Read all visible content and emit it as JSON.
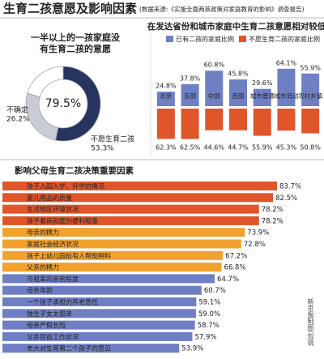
{
  "header": {
    "title": "生育二孩意愿及影响因素",
    "source": "(数据来源:《实施全面两孩政策对家庭教育的影响》调查报告)"
  },
  "chart_data": [
    {
      "type": "donut",
      "title": "一半以上的一孩家庭没有生育二孩的意愿",
      "categories": [
        "不愿生育二孩",
        "不确定",
        null
      ],
      "values": [
        53.3,
        26.2,
        20.5
      ],
      "value_labels": [
        "53.3%",
        "26.2%",
        null
      ],
      "colors": [
        "#26345f",
        "#c9ccd4",
        "#ffffff"
      ],
      "center_label": "79.5%"
    },
    {
      "type": "diverging",
      "title": "在发达省份和城市家庭中生育二孩意愿相对较低",
      "categories": [
        "北京",
        "东部",
        "中部",
        "西部",
        "城市普通",
        "城市流动",
        "农村乡镇"
      ],
      "series": [
        {
          "name": "已有二孩的家庭比例",
          "color": "#6f7fc4",
          "values": [
            24.8,
            37.8,
            60.8,
            45.8,
            29.6,
            64.1,
            55.9
          ],
          "value_labels": [
            "24.8%",
            "37.8%",
            "60.8%",
            "45.8%",
            "29.6%",
            "64.1%",
            "55.9%"
          ]
        },
        {
          "name": "不愿生育二孩的家庭比例",
          "color": "#e0552a",
          "values": [
            62.3,
            62.5,
            44.6,
            44.7,
            55.9,
            45.3,
            50.8
          ],
          "value_labels": [
            "62.3%",
            "62.5%",
            "44.6%",
            "44.7%",
            "55.9%",
            "45.3%",
            "50.8%"
          ]
        }
      ]
    },
    {
      "type": "barh",
      "title": "影响父母生育二孩决策重要因素",
      "categories": [
        "孩子入园入学、升学的情况",
        "婴儿用品的质量",
        "生活地区环境状况",
        "孩子看病就医的便利程度",
        "母亲的精力",
        "家庭社会经济状况",
        "孩子上幼儿园前有人帮助照料",
        "父亲的精力",
        "与祖辈的亲密程度",
        "母亲年龄",
        "一个孩子承担的养老责任",
        "独生子女太孤单",
        "母亲产假长短",
        "父亲目前工作状况",
        "老大对生育第二个孩子的意见"
      ],
      "values": [
        83.7,
        82.5,
        78.2,
        78.2,
        73.9,
        72.8,
        67.2,
        66.8,
        64.7,
        60.7,
        59.1,
        59.0,
        58.7,
        57.9,
        53.9
      ],
      "value_labels": [
        "83.7%",
        "82.5%",
        "78.2%",
        "78.2%",
        "73.9%",
        "72.8%",
        "67.2%",
        "66.8%",
        "64.7%",
        "60.7%",
        "59.1%",
        "59.0%",
        "58.7%",
        "57.9%",
        "53.9%"
      ],
      "colors": [
        "#e0552a",
        "#e0552a",
        "#e0552a",
        "#e0552a",
        "#f0a12e",
        "#f0a12e",
        "#f0a12e",
        "#f0a12e",
        "#6f7fc4",
        "#6f7fc4",
        "#6f7fc4",
        "#6f7fc4",
        "#6f7fc4",
        "#6f7fc4",
        "#6f7fc4"
      ]
    }
  ],
  "credit": "新京报制图/包锐"
}
